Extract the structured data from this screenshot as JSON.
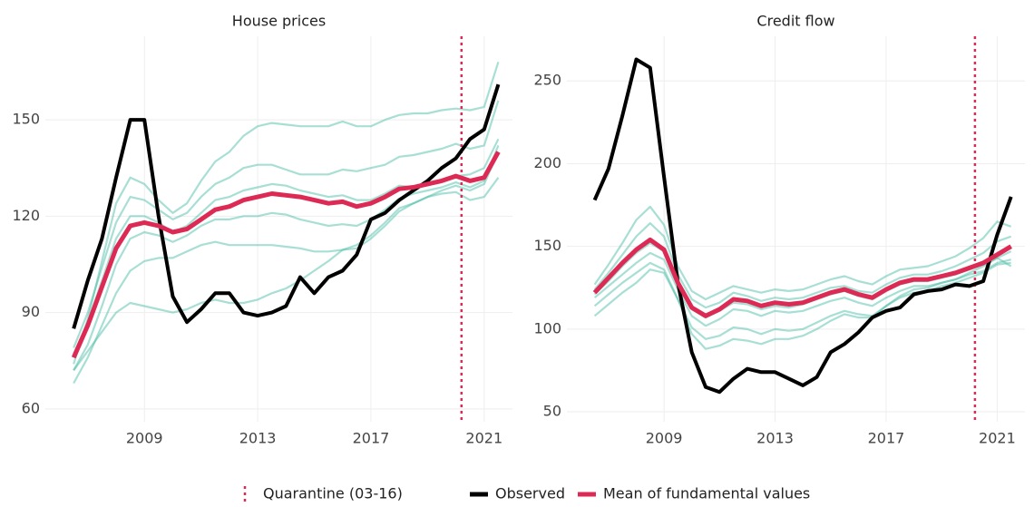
{
  "chart_data": [
    {
      "type": "line",
      "title": "House prices",
      "x": [
        2006.5,
        2007,
        2007.5,
        2008,
        2008.5,
        2009,
        2009.5,
        2010,
        2010.5,
        2011,
        2011.5,
        2012,
        2012.5,
        2013,
        2013.5,
        2014,
        2014.5,
        2015,
        2015.5,
        2016,
        2016.5,
        2017,
        2017.5,
        2018,
        2018.5,
        2019,
        2019.5,
        2020,
        2020.5,
        2021,
        2021.5
      ],
      "xlim": [
        2005.5,
        2022
      ],
      "xticks": [
        2009,
        2013,
        2017,
        2021
      ],
      "ylim": [
        56,
        176
      ],
      "yticks": [
        60,
        90,
        120,
        150
      ],
      "grid": true,
      "fundamental_values": {
        "color": "#3db9a0",
        "values": [
          [
            74,
            88,
            106,
            124,
            132,
            130,
            125,
            121,
            124,
            131,
            137,
            140,
            145,
            148,
            149,
            148.5,
            148,
            148,
            148,
            149.5,
            148,
            148,
            150,
            151.5,
            152,
            152,
            153,
            153.5,
            153,
            154,
            168
          ],
          [
            79,
            90,
            104,
            118,
            126,
            125,
            122,
            119,
            121,
            126,
            130,
            132,
            135,
            136,
            136,
            134.5,
            133,
            133,
            133,
            134.5,
            134,
            135,
            136,
            138.5,
            139,
            140,
            141,
            142.5,
            141,
            142,
            156
          ],
          [
            77,
            87,
            100,
            113,
            120,
            120,
            118,
            115,
            117,
            121,
            125,
            126,
            128,
            129,
            130,
            129.5,
            128,
            127,
            126,
            126.5,
            125,
            125,
            127,
            129.5,
            129,
            130,
            131,
            132.5,
            133,
            135,
            144
          ],
          [
            72,
            80,
            92,
            105,
            113,
            115,
            114,
            112,
            114,
            117,
            119,
            119,
            120,
            120,
            121,
            120.5,
            119,
            118,
            117,
            117.5,
            117,
            119,
            122,
            125.5,
            127,
            128,
            129,
            130.5,
            129,
            131,
            142
          ],
          [
            68,
            76,
            86,
            96,
            103,
            106,
            107,
            107,
            109,
            111,
            112,
            111,
            111,
            111,
            111,
            110.5,
            110,
            109,
            109,
            109.5,
            110,
            113,
            117,
            121.5,
            124,
            126,
            128,
            129.5,
            128,
            130,
            140
          ],
          [
            72,
            78,
            84,
            90,
            93,
            92,
            91,
            90,
            91,
            93,
            94,
            93,
            93,
            94,
            96,
            97.5,
            100,
            103,
            106,
            109.5,
            111,
            114,
            118,
            122.5,
            124,
            126,
            127,
            127.5,
            125,
            126,
            132
          ]
        ]
      },
      "series": [
        {
          "name": "Observed",
          "color": "#000000",
          "values": [
            85,
            100,
            113,
            132,
            150,
            150,
            120,
            95,
            87,
            91,
            96,
            96,
            90,
            89,
            90,
            92,
            101,
            96,
            101,
            103,
            108,
            119,
            121,
            125,
            128,
            131,
            135,
            138,
            144,
            147,
            161
          ]
        },
        {
          "name": "Mean of fundamental values",
          "color": "#dc2a55",
          "values": [
            76,
            86,
            98,
            110,
            117,
            118,
            117,
            115,
            116,
            119,
            122,
            123,
            125,
            126,
            127,
            126.5,
            126,
            125,
            124,
            124.5,
            123,
            124,
            126,
            128.5,
            129,
            130,
            131,
            132.5,
            131,
            132,
            140
          ]
        }
      ],
      "vline": {
        "x": 2020.2,
        "label": "Quarantine (03-16)",
        "color": "#dc2a55"
      }
    },
    {
      "type": "line",
      "title": "Credit flow",
      "x": [
        2006.5,
        2007,
        2007.5,
        2008,
        2008.5,
        2009,
        2009.5,
        2010,
        2010.5,
        2011,
        2011.5,
        2012,
        2012.5,
        2013,
        2013.5,
        2014,
        2014.5,
        2015,
        2015.5,
        2016,
        2016.5,
        2017,
        2017.5,
        2018,
        2018.5,
        2019,
        2019.5,
        2020,
        2020.5,
        2021,
        2021.5
      ],
      "xlim": [
        2005.5,
        2022
      ],
      "xticks": [
        2009,
        2013,
        2017,
        2021
      ],
      "ylim": [
        44,
        277
      ],
      "yticks": [
        50,
        100,
        150,
        200,
        250
      ],
      "grid": true,
      "fundamental_values": {
        "color": "#3db9a0",
        "values": [
          [
            127,
            139,
            152,
            166,
            174,
            163,
            138,
            123,
            118,
            122,
            126,
            124,
            122,
            124,
            123,
            124,
            127,
            130,
            132,
            129,
            127,
            132,
            136,
            137,
            138,
            141,
            144,
            149,
            155,
            165,
            162
          ],
          [
            124,
            134,
            145,
            156,
            164,
            156,
            133,
            118,
            113,
            116,
            122,
            120,
            117,
            119,
            118,
            119,
            122,
            125,
            126,
            123,
            122,
            127,
            131,
            133,
            133,
            135,
            138,
            142,
            146,
            153,
            156
          ],
          [
            121,
            129,
            138,
            146,
            152,
            147,
            127,
            112,
            107,
            111,
            116,
            115,
            112,
            114,
            113,
            115,
            118,
            121,
            123,
            120,
            118,
            123,
            127,
            129,
            129,
            131,
            133,
            136,
            139,
            143,
            147
          ],
          [
            119,
            126,
            133,
            140,
            146,
            142,
            124,
            108,
            102,
            106,
            112,
            111,
            108,
            111,
            110,
            111,
            114,
            117,
            119,
            116,
            114,
            119,
            123,
            126,
            126,
            128,
            130,
            133,
            135,
            140,
            142
          ],
          [
            114,
            121,
            128,
            134,
            140,
            136,
            118,
            101,
            94,
            96,
            101,
            100,
            97,
            100,
            99,
            100,
            104,
            108,
            111,
            109,
            108,
            114,
            119,
            122,
            123,
            126,
            128,
            131,
            134,
            139,
            140
          ],
          [
            108,
            115,
            122,
            128,
            136,
            134,
            118,
            97,
            88,
            90,
            94,
            93,
            91,
            94,
            94,
            96,
            100,
            105,
            109,
            107,
            107,
            114,
            120,
            124,
            125,
            128,
            130,
            134,
            138,
            143,
            138
          ]
        ]
      },
      "series": [
        {
          "color": "#000000",
          "values": [
            178,
            197,
            229,
            263,
            258,
            192,
            128,
            86,
            65,
            62,
            70,
            76,
            74,
            74,
            70,
            66,
            71,
            86,
            91,
            98,
            107,
            111,
            113,
            121,
            123,
            124,
            127,
            126,
            129,
            157,
            180
          ]
        },
        {
          "color": "#dc2a55",
          "values": [
            122,
            131,
            140,
            148,
            154,
            148,
            128,
            113,
            108,
            112,
            118,
            117,
            114,
            116,
            115,
            116,
            119,
            122,
            124,
            121,
            119,
            124,
            128,
            130,
            130,
            132,
            134,
            137,
            140,
            145,
            150
          ]
        }
      ],
      "vline": {
        "x": 2020.2,
        "color": "#dc2a55"
      }
    }
  ]
}
